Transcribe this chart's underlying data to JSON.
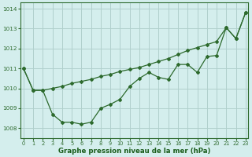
{
  "line1_x": [
    0,
    1,
    2,
    3,
    4,
    5,
    6,
    7,
    8,
    9,
    10,
    11,
    12,
    13,
    14,
    15,
    16,
    17,
    18,
    19,
    20,
    21,
    22,
    23
  ],
  "line1_y": [
    1011.0,
    1009.9,
    1009.9,
    1008.7,
    1008.3,
    1008.3,
    1008.2,
    1008.3,
    1009.0,
    1009.2,
    1009.45,
    1010.1,
    1010.5,
    1010.8,
    1010.55,
    1010.45,
    1011.2,
    1011.2,
    1010.8,
    1011.6,
    1011.65,
    1013.05,
    1012.5,
    1013.8
  ],
  "line2_x": [
    0,
    1,
    2,
    3,
    4,
    5,
    6,
    7,
    8,
    9,
    10,
    11,
    12,
    13,
    14,
    15,
    16,
    17,
    18,
    19,
    20,
    21,
    22,
    23
  ],
  "line2_y": [
    1011.0,
    1009.9,
    1009.9,
    1010.0,
    1010.1,
    1010.25,
    1010.35,
    1010.45,
    1010.6,
    1010.7,
    1010.85,
    1010.95,
    1011.05,
    1011.2,
    1011.35,
    1011.5,
    1011.7,
    1011.9,
    1012.05,
    1012.2,
    1012.35,
    1013.05,
    1012.5,
    1013.8
  ],
  "line_color": "#2d6a2d",
  "bg_color": "#d4eeed",
  "grid_color": "#b0d0cc",
  "xlabel": "Graphe pression niveau de la mer (hPa)",
  "xlabel_color": "#1a5c1a",
  "ylim": [
    1007.5,
    1014.3
  ],
  "xlim": [
    -0.3,
    23.3
  ],
  "yticks": [
    1008,
    1009,
    1010,
    1011,
    1012,
    1013,
    1014
  ],
  "xticks": [
    0,
    1,
    2,
    3,
    4,
    5,
    6,
    7,
    8,
    9,
    10,
    11,
    12,
    13,
    14,
    15,
    16,
    17,
    18,
    19,
    20,
    21,
    22,
    23
  ]
}
